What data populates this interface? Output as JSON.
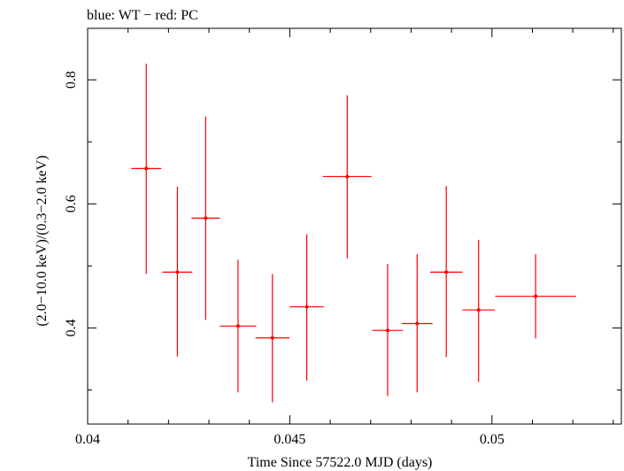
{
  "chart_data": {
    "type": "scatter",
    "title": "blue: WT − red: PC",
    "xlabel": "Time Since 57522.0 MJD (days)",
    "ylabel": "(2.0−10.0 keV)/(0.3−2.0 keV)",
    "xlim": [
      0.04,
      0.0532
    ],
    "ylim": [
      0.245,
      0.883
    ],
    "x_ticks": [
      0.04,
      0.045,
      0.05
    ],
    "x_tick_labels": [
      "0.04",
      "0.045",
      "0.05"
    ],
    "y_ticks": [
      0.4,
      0.6,
      0.8
    ],
    "y_tick_labels": [
      "0.4",
      "0.6",
      "0.8"
    ],
    "grid": false,
    "series": [
      {
        "name": "PC",
        "color": "#ff0000",
        "points": [
          {
            "x": 0.04145,
            "y": 0.657,
            "xerr_low": 0.00037,
            "xerr_high": 0.00037,
            "y_low": 0.487,
            "y_high": 0.826
          },
          {
            "x": 0.04222,
            "y": 0.49,
            "xerr_low": 0.00037,
            "xerr_high": 0.00037,
            "y_low": 0.354,
            "y_high": 0.628
          },
          {
            "x": 0.04292,
            "y": 0.577,
            "xerr_low": 0.00035,
            "xerr_high": 0.00035,
            "y_low": 0.413,
            "y_high": 0.741
          },
          {
            "x": 0.04372,
            "y": 0.403,
            "xerr_low": 0.00045,
            "xerr_high": 0.00045,
            "y_low": 0.296,
            "y_high": 0.51
          },
          {
            "x": 0.04457,
            "y": 0.384,
            "xerr_low": 0.00042,
            "xerr_high": 0.00042,
            "y_low": 0.28,
            "y_high": 0.487
          },
          {
            "x": 0.04542,
            "y": 0.434,
            "xerr_low": 0.00042,
            "xerr_high": 0.00042,
            "y_low": 0.315,
            "y_high": 0.551
          },
          {
            "x": 0.04642,
            "y": 0.644,
            "xerr_low": 0.0006,
            "xerr_high": 0.0006,
            "y_low": 0.512,
            "y_high": 0.775
          },
          {
            "x": 0.04742,
            "y": 0.396,
            "xerr_low": 0.00038,
            "xerr_high": 0.00038,
            "y_low": 0.29,
            "y_high": 0.503
          },
          {
            "x": 0.04815,
            "y": 0.407,
            "xerr_low": 0.00038,
            "xerr_high": 0.00038,
            "y_low": 0.296,
            "y_high": 0.519
          },
          {
            "x": 0.04887,
            "y": 0.49,
            "xerr_low": 0.0004,
            "xerr_high": 0.0004,
            "y_low": 0.353,
            "y_high": 0.629
          },
          {
            "x": 0.04967,
            "y": 0.429,
            "xerr_low": 0.0004,
            "xerr_high": 0.0004,
            "y_low": 0.313,
            "y_high": 0.542
          },
          {
            "x": 0.05108,
            "y": 0.451,
            "xerr_low": 0.001,
            "xerr_high": 0.001,
            "y_low": 0.383,
            "y_high": 0.519
          }
        ]
      }
    ]
  }
}
